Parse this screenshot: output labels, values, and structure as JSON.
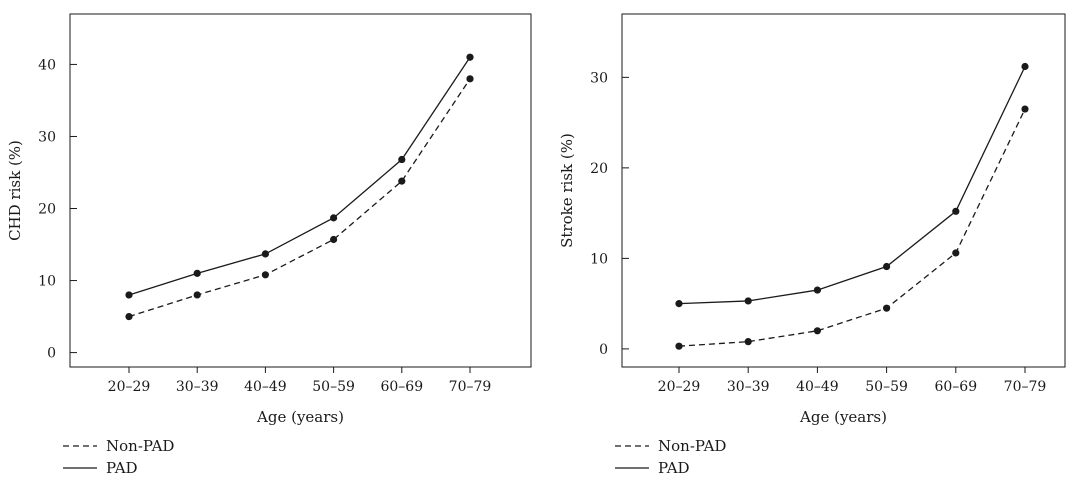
{
  "chart_data": [
    {
      "type": "line",
      "categories": [
        "20–29",
        "30–39",
        "40–49",
        "50–59",
        "60–69",
        "70–79"
      ],
      "series": [
        {
          "name": "Non-PAD",
          "values": [
            5,
            8,
            10.8,
            15.7,
            23.8,
            38
          ],
          "line_style": "dashed"
        },
        {
          "name": "PAD",
          "values": [
            8,
            11,
            13.7,
            18.7,
            26.8,
            41
          ],
          "line_style": "solid"
        }
      ],
      "xlabel": "Age (years)",
      "ylabel": "CHD risk (%)",
      "ylim": [
        -2,
        47
      ],
      "yticks": [
        0,
        10,
        20,
        30,
        40
      ],
      "grid": false,
      "legend_position": "bottom-left"
    },
    {
      "type": "line",
      "categories": [
        "20–29",
        "30–39",
        "40–49",
        "50–59",
        "60–69",
        "70–79"
      ],
      "series": [
        {
          "name": "Non-PAD",
          "values": [
            0.3,
            0.8,
            2,
            4.5,
            10.6,
            26.5
          ],
          "line_style": "dashed"
        },
        {
          "name": "PAD",
          "values": [
            5,
            5.3,
            6.5,
            9.1,
            15.2,
            31.2
          ],
          "line_style": "solid"
        }
      ],
      "xlabel": "Age (years)",
      "ylabel": "Stroke risk (%)",
      "ylim": [
        -2,
        37
      ],
      "yticks": [
        0,
        10,
        20,
        30
      ],
      "grid": false,
      "legend_position": "bottom-left"
    }
  ],
  "colors": {
    "line": "#1a1a1a",
    "background": "#ffffff"
  }
}
